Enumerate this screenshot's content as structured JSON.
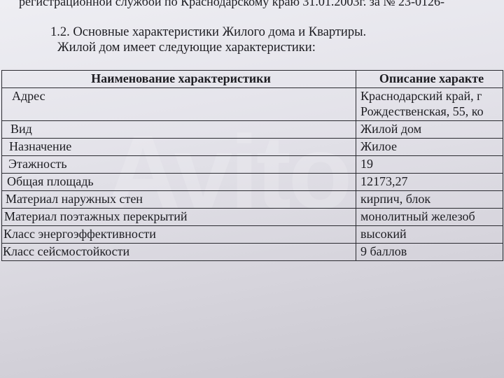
{
  "document": {
    "line1": "регистрационной службой по Краснодарскому краю 31.01.2003г. за № 23-0126-",
    "section_heading": "1.2. Основные характеристики Жилого дома и Квартиры.",
    "intro": "Жилой дом имеет следующие характеристики:"
  },
  "table": {
    "headers": [
      "Наименование характеристики",
      "Описание характе"
    ],
    "rows": [
      {
        "name": "Адрес",
        "value": "Краснодарский край, г",
        "value2": "Рождественская, 55, ко"
      },
      {
        "name": "Вид",
        "value": "Жилой дом"
      },
      {
        "name": "Назначение",
        "value": "Жилое"
      },
      {
        "name": "Этажность",
        "value": "19"
      },
      {
        "name": "Общая площадь",
        "value": "12173,27"
      },
      {
        "name": "Материал наружных стен",
        "value": "кирпич, блок"
      },
      {
        "name": "Материал поэтажных перекрытий",
        "value": "монолитный железоб"
      },
      {
        "name": "Класс энергоэффективности",
        "value": "высокий"
      },
      {
        "name": "Класс сейсмостойкости",
        "value": "9 баллов"
      }
    ]
  },
  "watermark": "Avito"
}
